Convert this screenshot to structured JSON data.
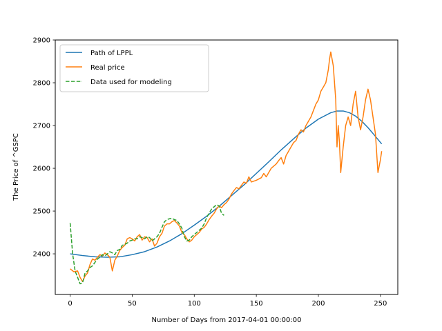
{
  "chart_data": {
    "type": "line",
    "xlabel": "Number of Days from 2017-04-01 00:00:00",
    "ylabel": "The Price of ^GSPC",
    "xlim": [
      -12,
      264
    ],
    "ylim": [
      2305,
      2900
    ],
    "xticks": [
      0,
      50,
      100,
      150,
      200,
      250
    ],
    "yticks": [
      2400,
      2500,
      2600,
      2700,
      2800,
      2900
    ],
    "grid": false,
    "legend_position": "upper left",
    "series": [
      {
        "name": "Path of LPPL",
        "color": "#1f77b4",
        "style": "solid",
        "x": [
          0,
          10,
          20,
          30,
          40,
          50,
          60,
          70,
          80,
          90,
          100,
          110,
          120,
          130,
          140,
          150,
          160,
          170,
          180,
          190,
          200,
          210,
          215,
          220,
          225,
          230,
          235,
          240,
          245,
          251
        ],
        "y": [
          2400,
          2396,
          2393,
          2392,
          2393,
          2398,
          2405,
          2416,
          2430,
          2447,
          2467,
          2488,
          2511,
          2536,
          2561,
          2588,
          2615,
          2643,
          2669,
          2694,
          2715,
          2730,
          2734,
          2734,
          2730,
          2722,
          2710,
          2695,
          2678,
          2657
        ]
      },
      {
        "name": "Real price",
        "color": "#ff7f0e",
        "style": "solid",
        "x": [
          0,
          3,
          6,
          8,
          10,
          12,
          14,
          16,
          18,
          20,
          22,
          24,
          26,
          28,
          30,
          32,
          34,
          36,
          38,
          40,
          42,
          44,
          46,
          48,
          50,
          52,
          54,
          56,
          58,
          60,
          62,
          64,
          66,
          68,
          70,
          72,
          74,
          76,
          78,
          80,
          82,
          84,
          86,
          88,
          90,
          92,
          94,
          96,
          98,
          100,
          102,
          104,
          106,
          108,
          110,
          112,
          114,
          116,
          118,
          120,
          122,
          124,
          126,
          128,
          130,
          132,
          134,
          136,
          138,
          140,
          142,
          144,
          146,
          148,
          150,
          152,
          154,
          156,
          158,
          160,
          162,
          164,
          166,
          168,
          170,
          172,
          174,
          176,
          178,
          180,
          182,
          184,
          186,
          188,
          190,
          192,
          194,
          196,
          198,
          200,
          202,
          204,
          206,
          207,
          208,
          209,
          210,
          212,
          213,
          214,
          215,
          216,
          217,
          218,
          219,
          220,
          222,
          224,
          226,
          228,
          230,
          232,
          234,
          236,
          238,
          240,
          242,
          244,
          246,
          248,
          250,
          251
        ],
        "y": [
          2365,
          2358,
          2360,
          2345,
          2335,
          2348,
          2355,
          2375,
          2388,
          2385,
          2392,
          2398,
          2395,
          2402,
          2398,
          2392,
          2360,
          2385,
          2395,
          2408,
          2415,
          2420,
          2435,
          2438,
          2435,
          2430,
          2440,
          2445,
          2432,
          2440,
          2438,
          2428,
          2435,
          2418,
          2425,
          2440,
          2448,
          2465,
          2470,
          2470,
          2475,
          2478,
          2472,
          2465,
          2450,
          2445,
          2435,
          2428,
          2432,
          2440,
          2445,
          2450,
          2458,
          2462,
          2470,
          2480,
          2488,
          2495,
          2505,
          2512,
          2508,
          2515,
          2520,
          2528,
          2540,
          2548,
          2555,
          2552,
          2560,
          2568,
          2565,
          2580,
          2568,
          2570,
          2572,
          2575,
          2578,
          2588,
          2580,
          2590,
          2600,
          2605,
          2610,
          2618,
          2625,
          2610,
          2630,
          2640,
          2650,
          2660,
          2665,
          2680,
          2690,
          2685,
          2700,
          2710,
          2720,
          2735,
          2750,
          2760,
          2780,
          2790,
          2800,
          2815,
          2830,
          2855,
          2872,
          2840,
          2800,
          2760,
          2650,
          2700,
          2660,
          2590,
          2620,
          2650,
          2700,
          2720,
          2700,
          2750,
          2780,
          2720,
          2690,
          2720,
          2760,
          2785,
          2760,
          2720,
          2680,
          2590,
          2620,
          2640
        ]
      },
      {
        "name": "Data used for modeling",
        "color": "#2ca02c",
        "style": "dashed",
        "x": [
          0,
          2,
          4,
          6,
          8,
          10,
          12,
          14,
          16,
          18,
          20,
          22,
          24,
          26,
          28,
          30,
          32,
          34,
          36,
          38,
          40,
          42,
          44,
          46,
          48,
          50,
          52,
          54,
          56,
          58,
          60,
          62,
          64,
          66,
          68,
          70,
          72,
          74,
          76,
          78,
          80,
          82,
          84,
          86,
          88,
          90,
          92,
          94,
          96,
          98,
          100,
          102,
          104,
          106,
          108,
          110,
          112,
          114,
          116,
          118,
          120,
          122,
          124
        ],
        "y": [
          2472,
          2400,
          2360,
          2345,
          2330,
          2332,
          2355,
          2360,
          2368,
          2372,
          2380,
          2388,
          2392,
          2398,
          2395,
          2400,
          2405,
          2402,
          2398,
          2408,
          2410,
          2420,
          2422,
          2425,
          2430,
          2432,
          2435,
          2435,
          2440,
          2438,
          2435,
          2440,
          2438,
          2430,
          2435,
          2440,
          2448,
          2462,
          2475,
          2480,
          2482,
          2483,
          2480,
          2478,
          2470,
          2460,
          2440,
          2430,
          2432,
          2440,
          2445,
          2450,
          2455,
          2460,
          2470,
          2485,
          2495,
          2505,
          2510,
          2515,
          2512,
          2495,
          2490
        ]
      }
    ]
  }
}
